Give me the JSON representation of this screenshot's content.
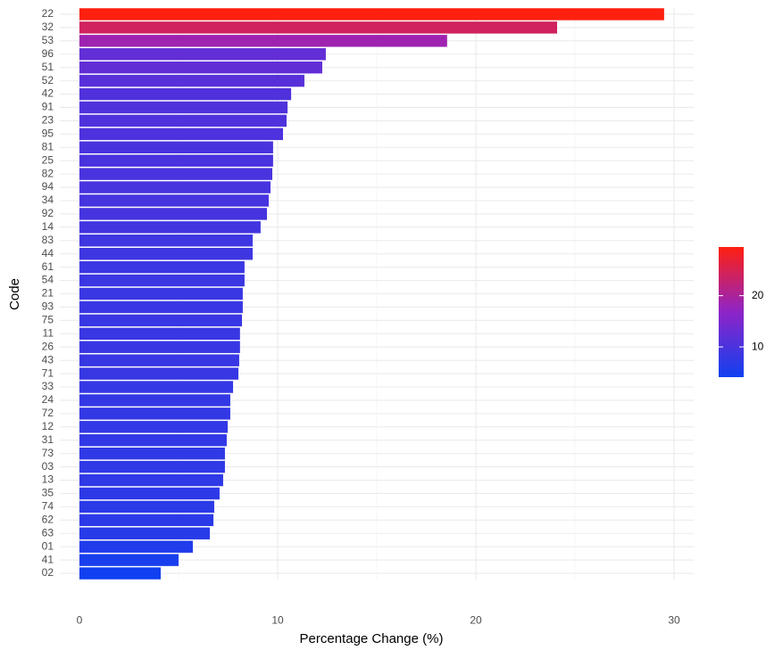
{
  "chart_data": {
    "type": "barh",
    "x_label": "Percentage Change (%)",
    "y_label": "Code",
    "categories": [
      "22",
      "32",
      "53",
      "96",
      "51",
      "52",
      "42",
      "91",
      "23",
      "95",
      "81",
      "25",
      "82",
      "94",
      "34",
      "92",
      "14",
      "83",
      "44",
      "61",
      "54",
      "21",
      "93",
      "75",
      "11",
      "26",
      "43",
      "71",
      "33",
      "24",
      "72",
      "12",
      "31",
      "73",
      "03",
      "13",
      "35",
      "74",
      "62",
      "63",
      "01",
      "41",
      "02"
    ],
    "values": [
      29.5,
      24.1,
      18.55,
      12.43,
      12.25,
      11.35,
      10.68,
      10.5,
      10.45,
      10.27,
      9.77,
      9.77,
      9.73,
      9.64,
      9.55,
      9.46,
      9.14,
      8.74,
      8.74,
      8.33,
      8.33,
      8.24,
      8.24,
      8.2,
      8.1,
      8.1,
      8.06,
      8.02,
      7.75,
      7.61,
      7.61,
      7.48,
      7.43,
      7.34,
      7.34,
      7.25,
      7.07,
      6.8,
      6.76,
      6.58,
      5.72,
      5.0,
      4.1
    ],
    "colorscale": [
      "#1040f0",
      "#8e24c8",
      "#ff2010"
    ],
    "colorbar_ticks": [
      10,
      20
    ],
    "xlim": [
      -1,
      31
    ],
    "xticks": [
      0,
      10,
      20,
      30
    ],
    "grid": true
  }
}
